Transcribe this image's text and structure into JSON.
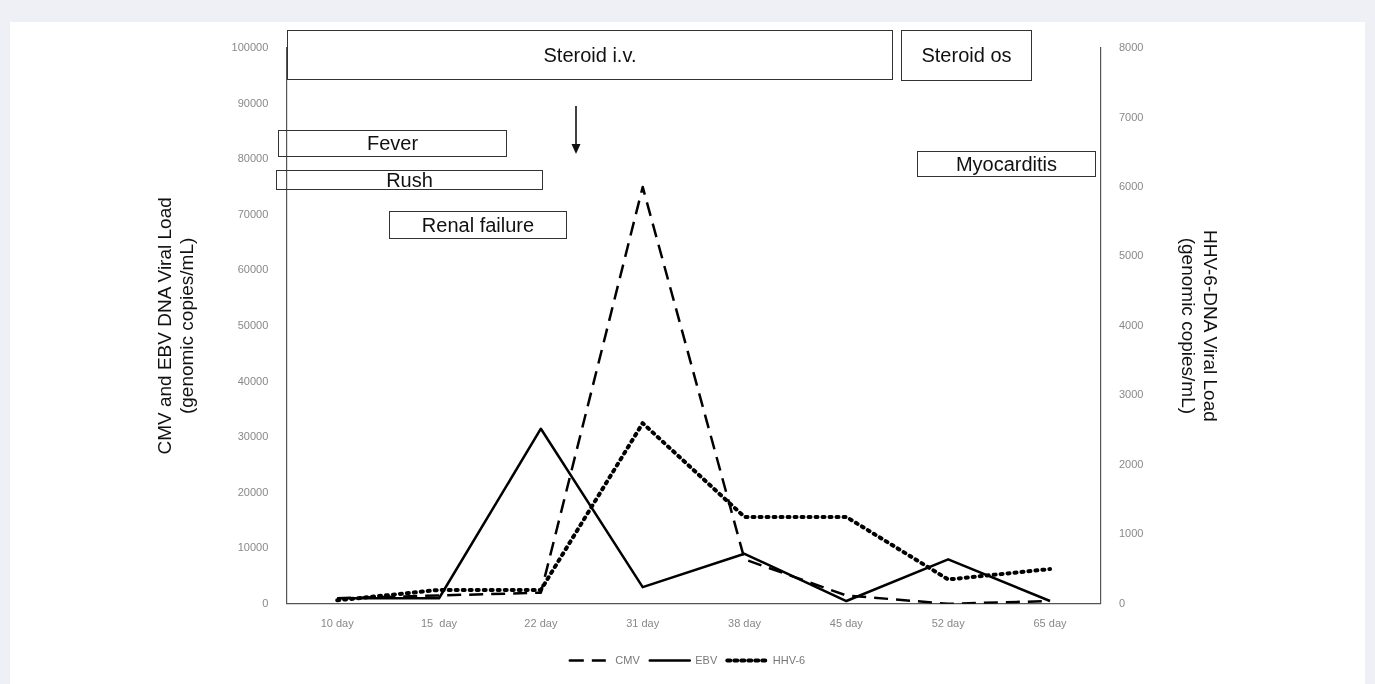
{
  "chart_data": {
    "type": "line",
    "ylabel": "CMV and EBV DNA Viral Load\n(genomic copies/mL)",
    "y2label": "HHV-6-DNA Viral Load\n(genomic copies/mL)",
    "categories": [
      "10 day",
      "15  day",
      "22 day",
      "31 day",
      "38 day",
      "45 day",
      "52 day",
      "65 day"
    ],
    "series": [
      {
        "name": "CMV",
        "color": "#000000",
        "line_style": "dashed",
        "values": [
          1000,
          1500,
          2000,
          75000,
          8000,
          1500,
          0,
          500
        ]
      },
      {
        "name": "EBV",
        "color": "#000000",
        "line_style": "solid",
        "values": [
          1000,
          1000,
          31500,
          3000,
          9000,
          500,
          8000,
          500
        ]
      },
      {
        "name": "HHV-6",
        "color": "#000000",
        "line_style": "dotted",
        "axis": "y2",
        "values": [
          50,
          200,
          200,
          2600,
          1250,
          1250,
          350,
          500
        ]
      }
    ],
    "ylim": [
      0,
      100000
    ],
    "yticks": [
      0,
      10000,
      20000,
      30000,
      40000,
      50000,
      60000,
      70000,
      80000,
      90000,
      100000
    ],
    "y2lim": [
      0,
      8000
    ],
    "y2ticks": [
      0,
      1000,
      2000,
      3000,
      4000,
      5000,
      6000,
      7000,
      8000
    ],
    "annotations": [
      "Steroid  i.v.",
      "Steroid os",
      "Fever",
      "Rush",
      "Renal failure",
      "Myocarditis"
    ],
    "grid": false,
    "legend": "bottom",
    "marker": "none"
  }
}
